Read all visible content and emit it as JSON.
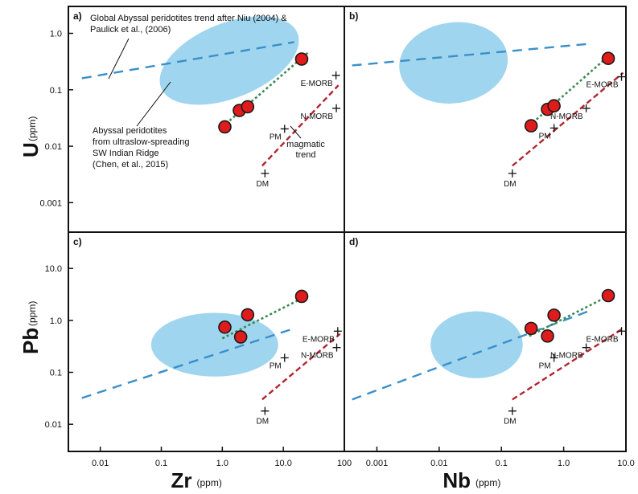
{
  "chart_data": [
    {
      "panel": "a)",
      "type": "scatter",
      "x_scale": "log",
      "y_scale": "log",
      "xlim": [
        0.003,
        100
      ],
      "ylim": [
        0.0003,
        3
      ],
      "y_ticks": [
        "1.0",
        "0.1",
        "0.01",
        "0.001"
      ],
      "samples": [
        {
          "x": 1.1,
          "y": 0.022
        },
        {
          "x": 1.9,
          "y": 0.043
        },
        {
          "x": 2.6,
          "y": 0.05
        },
        {
          "x": 20,
          "y": 0.35
        }
      ],
      "sample_trend": [
        {
          "x": 1.0,
          "y": 0.022
        },
        {
          "x": 25,
          "y": 0.45
        }
      ],
      "references": [
        {
          "label": "DM",
          "x": 5,
          "y": 0.0033
        },
        {
          "label": "PM",
          "x": 10.5,
          "y": 0.0203
        },
        {
          "label": "N-MORB",
          "x": 74,
          "y": 0.047
        },
        {
          "label": "E-MORB",
          "x": 73,
          "y": 0.18
        }
      ],
      "magmatic_trend": [
        {
          "x": 4.5,
          "y": 0.0045
        },
        {
          "x": 80,
          "y": 0.12
        }
      ],
      "abyssal_trend": [
        {
          "x": 0.005,
          "y": 0.16
        },
        {
          "x": 15,
          "y": 0.7
        }
      ],
      "ellipse": {
        "x": 1.3,
        "y": 0.33,
        "x_factor": 16,
        "y_factor": 4.6,
        "tilt_deg": -22
      },
      "annotations": {
        "global_trend": [
          "Global Abyssal peridotites trend after Niu (2004) &",
          "Paulick et al., (2006)"
        ],
        "ellipse_label": [
          "Abyssal peridotites",
          "from ultraslow-spreading",
          "SW Indian Ridge",
          "(Chen, et al., 2015)"
        ],
        "magmatic": [
          "magmatic",
          "trend"
        ]
      }
    },
    {
      "panel": "b)",
      "type": "scatter",
      "x_scale": "log",
      "y_scale": "log",
      "xlim": [
        0.0003,
        10
      ],
      "ylim": [
        0.0003,
        3
      ],
      "samples": [
        {
          "x": 0.3,
          "y": 0.023
        },
        {
          "x": 0.55,
          "y": 0.045
        },
        {
          "x": 0.7,
          "y": 0.052
        },
        {
          "x": 5.2,
          "y": 0.36
        }
      ],
      "sample_trend": [
        {
          "x": 0.28,
          "y": 0.023
        },
        {
          "x": 6,
          "y": 0.45
        }
      ],
      "references": [
        {
          "label": "DM",
          "x": 0.15,
          "y": 0.0033
        },
        {
          "label": "PM",
          "x": 0.7,
          "y": 0.021
        },
        {
          "label": "N-MORB",
          "x": 2.3,
          "y": 0.047
        },
        {
          "label": "E-MORB",
          "x": 8.5,
          "y": 0.17
        }
      ],
      "magmatic_trend": [
        {
          "x": 0.15,
          "y": 0.0045
        },
        {
          "x": 9,
          "y": 0.2
        }
      ],
      "abyssal_trend": [
        {
          "x": 0.0004,
          "y": 0.27
        },
        {
          "x": 2.5,
          "y": 0.65
        }
      ],
      "ellipse": {
        "x": 0.017,
        "y": 0.3,
        "x_factor": 7.5,
        "y_factor": 5.2,
        "tilt_deg": -8
      }
    },
    {
      "panel": "c)",
      "type": "scatter",
      "x_scale": "log",
      "y_scale": "log",
      "xlim": [
        0.003,
        100
      ],
      "ylim": [
        0.003,
        50
      ],
      "y_ticks": [
        "10.0",
        "1.0",
        "0.1",
        "0.01"
      ],
      "x_ticks": [
        "0.01",
        "0.1",
        "1.0",
        "10.0",
        "100"
      ],
      "samples": [
        {
          "x": 1.1,
          "y": 0.74
        },
        {
          "x": 2.6,
          "y": 1.28
        },
        {
          "x": 2.0,
          "y": 0.48
        },
        {
          "x": 20,
          "y": 2.9
        }
      ],
      "sample_trend": [
        {
          "x": 1.0,
          "y": 0.45
        },
        {
          "x": 25,
          "y": 3.0
        }
      ],
      "references": [
        {
          "label": "DM",
          "x": 5,
          "y": 0.018
        },
        {
          "label": "PM",
          "x": 10.5,
          "y": 0.19
        },
        {
          "label": "N-MORB",
          "x": 75,
          "y": 0.3
        },
        {
          "label": "E-MORB",
          "x": 78,
          "y": 0.62
        }
      ],
      "magmatic_trend": [
        {
          "x": 4.5,
          "y": 0.03
        },
        {
          "x": 85,
          "y": 0.55
        }
      ],
      "abyssal_trend": [
        {
          "x": 0.005,
          "y": 0.032
        },
        {
          "x": 15,
          "y": 0.7
        }
      ],
      "ellipse": {
        "x": 0.75,
        "y": 0.34,
        "x_factor": 11,
        "y_factor": 4.1,
        "tilt_deg": 0
      },
      "xlabel": "Zr",
      "xunit": "(ppm)"
    },
    {
      "panel": "d)",
      "type": "scatter",
      "x_scale": "log",
      "y_scale": "log",
      "xlim": [
        0.0003,
        10
      ],
      "ylim": [
        0.003,
        50
      ],
      "x_ticks": [
        "0.001",
        "0.01",
        "0.1",
        "1.0",
        "10.0"
      ],
      "samples": [
        {
          "x": 0.3,
          "y": 0.7
        },
        {
          "x": 0.7,
          "y": 1.26
        },
        {
          "x": 0.55,
          "y": 0.5
        },
        {
          "x": 5.2,
          "y": 3.0
        }
      ],
      "sample_trend": [
        {
          "x": 0.28,
          "y": 0.5
        },
        {
          "x": 6,
          "y": 3.2
        }
      ],
      "references": [
        {
          "label": "DM",
          "x": 0.15,
          "y": 0.018
        },
        {
          "label": "PM",
          "x": 0.7,
          "y": 0.19
        },
        {
          "label": "N-MORB",
          "x": 2.3,
          "y": 0.3
        },
        {
          "label": "E-MORB",
          "x": 8.5,
          "y": 0.62
        }
      ],
      "magmatic_trend": [
        {
          "x": 0.15,
          "y": 0.03
        },
        {
          "x": 9,
          "y": 0.7
        }
      ],
      "abyssal_trend": [
        {
          "x": 0.0004,
          "y": 0.03
        },
        {
          "x": 2.5,
          "y": 1.5
        }
      ],
      "ellipse": {
        "x": 0.04,
        "y": 0.34,
        "x_factor": 5.5,
        "y_factor": 4.4,
        "tilt_deg": 0
      },
      "xlabel": "Nb",
      "xunit": "(ppm)"
    }
  ],
  "ylabels": {
    "top": {
      "main": "U",
      "unit": "(ppm)"
    },
    "bottom": {
      "main": "Pb",
      "unit": "(ppm)"
    }
  },
  "colors": {
    "sample_fill": "#e01b1b",
    "sample_edge": "#1a1a1a",
    "sample_trend": "#3a8a4f",
    "magmatic_trend": "#b2252f",
    "abyssal_trend": "#3b8fc9",
    "ellipse_fill": "#9fd5ee"
  }
}
